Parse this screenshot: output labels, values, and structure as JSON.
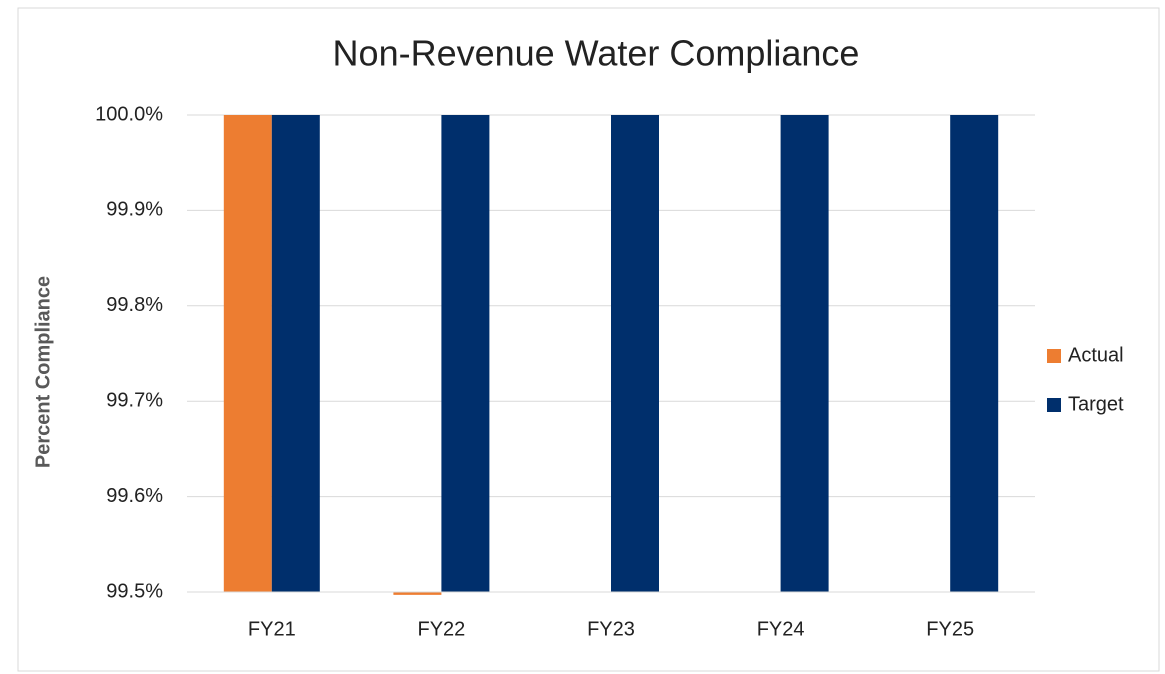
{
  "chart_data": {
    "type": "bar",
    "title": "Non-Revenue Water Compliance",
    "y_label": "Percent Compliance",
    "categories": [
      "FY21",
      "FY22",
      "FY23",
      "FY24",
      "FY25"
    ],
    "series": [
      {
        "name": "Actual",
        "color": "#ed7d31",
        "values": [
          100,
          99.497,
          null,
          null,
          null
        ]
      },
      {
        "name": "Target",
        "color": "#002f6c",
        "values": [
          100,
          100,
          100,
          100,
          100
        ]
      }
    ],
    "ylim": [
      99.5,
      100
    ],
    "yticks": [
      {
        "value": 99.5,
        "label": "99.5%"
      },
      {
        "value": 99.6,
        "label": "99.6%"
      },
      {
        "value": 99.7,
        "label": "99.7%"
      },
      {
        "value": 99.8,
        "label": "99.8%"
      },
      {
        "value": 99.9,
        "label": "99.9%"
      },
      {
        "value": 100,
        "label": "100.0%"
      }
    ],
    "grid": true,
    "legend": "right"
  }
}
